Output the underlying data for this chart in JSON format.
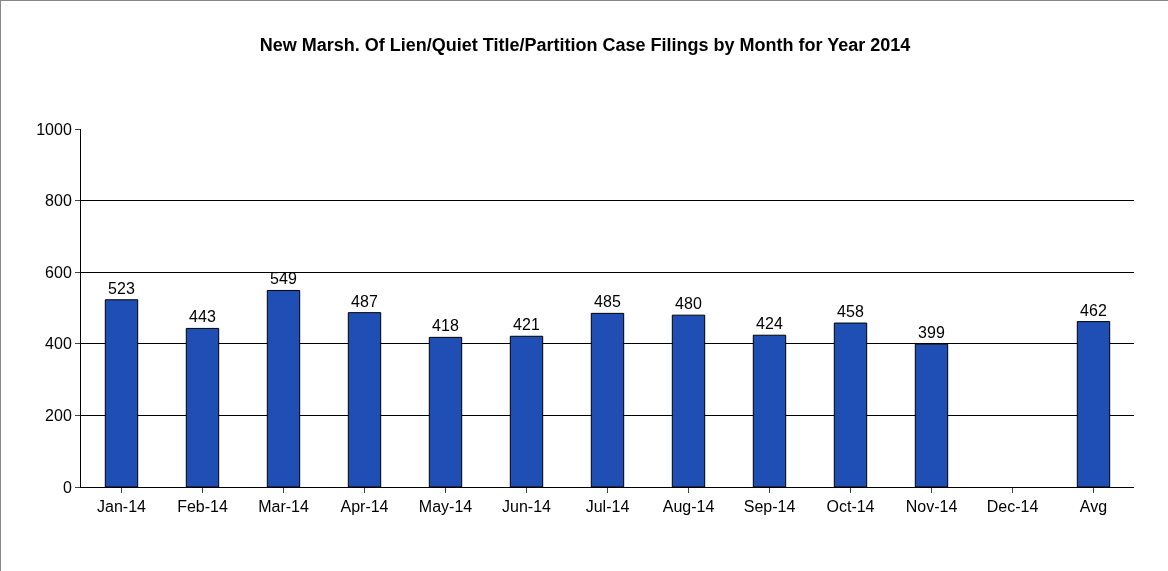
{
  "chart_data": {
    "type": "bar",
    "title": "New Marsh. Of Lien/Quiet Title/Partition Case Filings by Month for Year 2014",
    "categories": [
      "Jan-14",
      "Feb-14",
      "Mar-14",
      "Apr-14",
      "May-14",
      "Jun-14",
      "Jul-14",
      "Aug-14",
      "Sep-14",
      "Oct-14",
      "Nov-14",
      "Dec-14",
      "Avg"
    ],
    "values": [
      523,
      443,
      549,
      487,
      418,
      421,
      485,
      480,
      424,
      458,
      399,
      null,
      462
    ],
    "color": "#1f4fb4",
    "ylim": [
      0,
      1000
    ],
    "yticks": [
      0,
      200,
      400,
      600,
      800,
      1000
    ],
    "grid": "y",
    "data_labels": true
  }
}
